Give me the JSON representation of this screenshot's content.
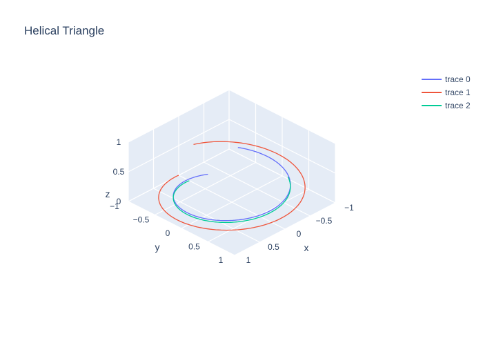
{
  "chart_data": {
    "type": "line3d",
    "title": "Helical Triangle",
    "axes": {
      "x": {
        "title": "x",
        "range": [
          -1,
          1
        ],
        "ticks": [
          -1,
          -0.5,
          0,
          0.5,
          1
        ],
        "tick_labels": [
          "−1",
          "−0.5",
          "0",
          "0.5",
          "1"
        ]
      },
      "y": {
        "title": "y",
        "range": [
          -1,
          1
        ],
        "ticks": [
          -1,
          -0.5,
          0,
          0.5,
          1
        ],
        "tick_labels": [
          "−1",
          "−0.5",
          "0",
          "0.5",
          "1"
        ]
      },
      "z": {
        "title": "z",
        "range": [
          0,
          1
        ],
        "ticks": [
          0,
          0.5,
          1
        ],
        "tick_labels": [
          "0",
          "0.5",
          "1"
        ]
      }
    },
    "legend_position": "top-right",
    "series": [
      {
        "name": "trace 0",
        "color": "#636efa",
        "radius": 0.8,
        "z_start": 0,
        "z_end": 0.42,
        "phase_deg": -112.5,
        "sweep_deg": 330
      },
      {
        "name": "trace 1",
        "color": "#ef553b",
        "radius": 1.0,
        "z_start": 0,
        "z_end": 0.42,
        "phase_deg": -90,
        "sweep_deg": 345
      },
      {
        "name": "trace 2",
        "color": "#00cc96",
        "radius": 0.8,
        "z_start": 0,
        "z_end": 0.3,
        "phase_deg": -90,
        "sweep_deg": 240
      }
    ]
  }
}
